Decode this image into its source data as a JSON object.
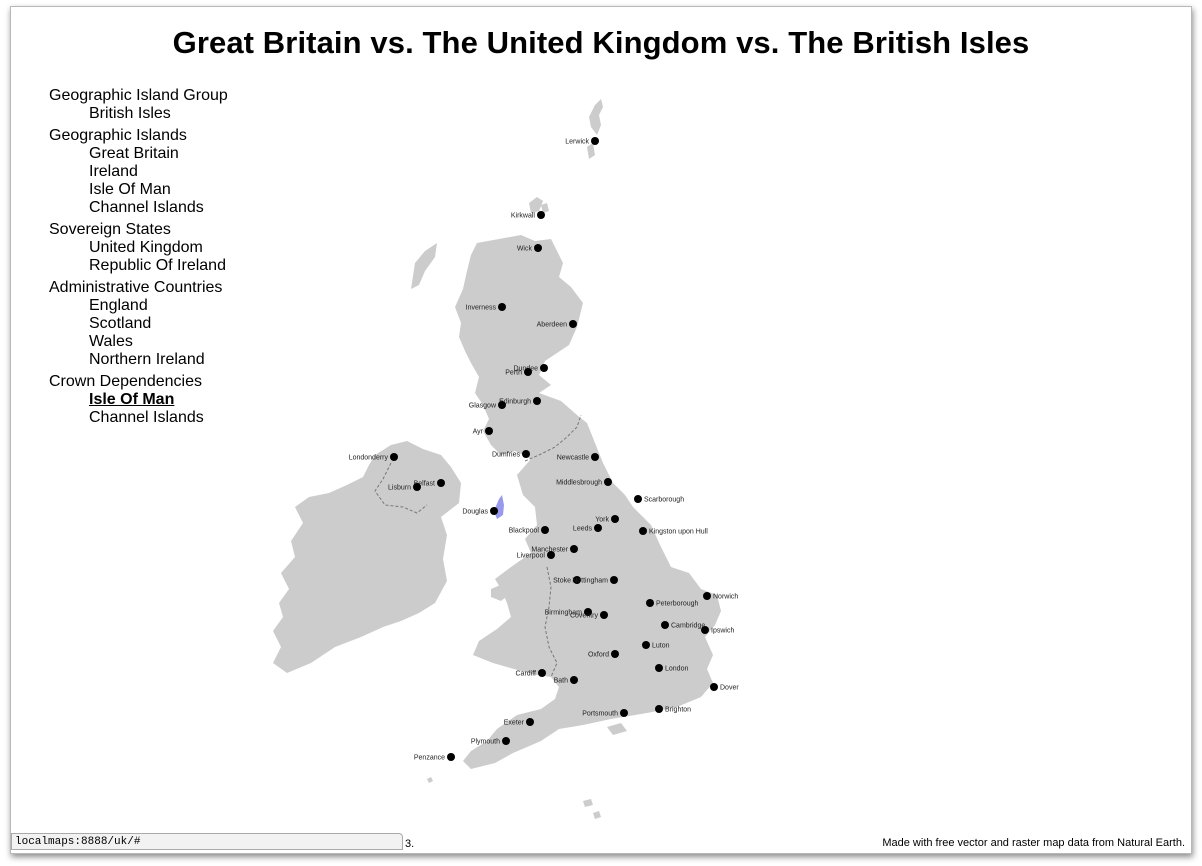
{
  "page": {
    "title": "Great Britain vs. The United Kingdom vs. The British Isles"
  },
  "nav": {
    "groups": [
      {
        "label": "Geographic Island Group",
        "items": [
          "British Isles"
        ]
      },
      {
        "label": "Geographic Islands",
        "items": [
          "Great Britain",
          "Ireland",
          "Isle Of Man",
          "Channel Islands"
        ]
      },
      {
        "label": "Sovereign States",
        "items": [
          "United Kingdom",
          "Republic Of Ireland"
        ]
      },
      {
        "label": "Administrative Countries",
        "items": [
          "England",
          "Scotland",
          "Wales",
          "Northern Ireland"
        ]
      },
      {
        "label": "Crown Dependencies",
        "items": [
          "Isle Of Man",
          "Channel Islands"
        ]
      }
    ],
    "selected": "Crown Dependencies / Isle Of Man"
  },
  "map": {
    "land_color": "#cccccc",
    "highlight_color": "#9999ee",
    "border_style": "dashed",
    "highlighted_region": "Isle Of Man",
    "cities": [
      "Lerwick",
      "Kirkwall",
      "Wick",
      "Inverness",
      "Aberdeen",
      "Dundee",
      "Perth",
      "Edinburgh",
      "Glasgow",
      "Ayr",
      "Dumfries",
      "Newcastle",
      "Londonderry",
      "Belfast",
      "Lisburn",
      "Douglas",
      "Middlesbrough",
      "Scarborough",
      "York",
      "Leeds",
      "Kingston upon Hull",
      "Blackpool",
      "Manchester",
      "Liverpool",
      "Stoke",
      "Nottingham",
      "Norwich",
      "Peterborough",
      "Birmingham",
      "Coventry",
      "Cambridge",
      "Ipswich",
      "Luton",
      "Oxford",
      "London",
      "Cardiff",
      "Bath",
      "Dover",
      "Brighton",
      "Portsmouth",
      "Exeter",
      "Plymouth",
      "Penzance"
    ]
  },
  "status_bar": {
    "url": "localmaps:8888/uk/#"
  },
  "footer": {
    "note": "3.",
    "credit": "Made with free vector and raster map data from Natural Earth."
  }
}
